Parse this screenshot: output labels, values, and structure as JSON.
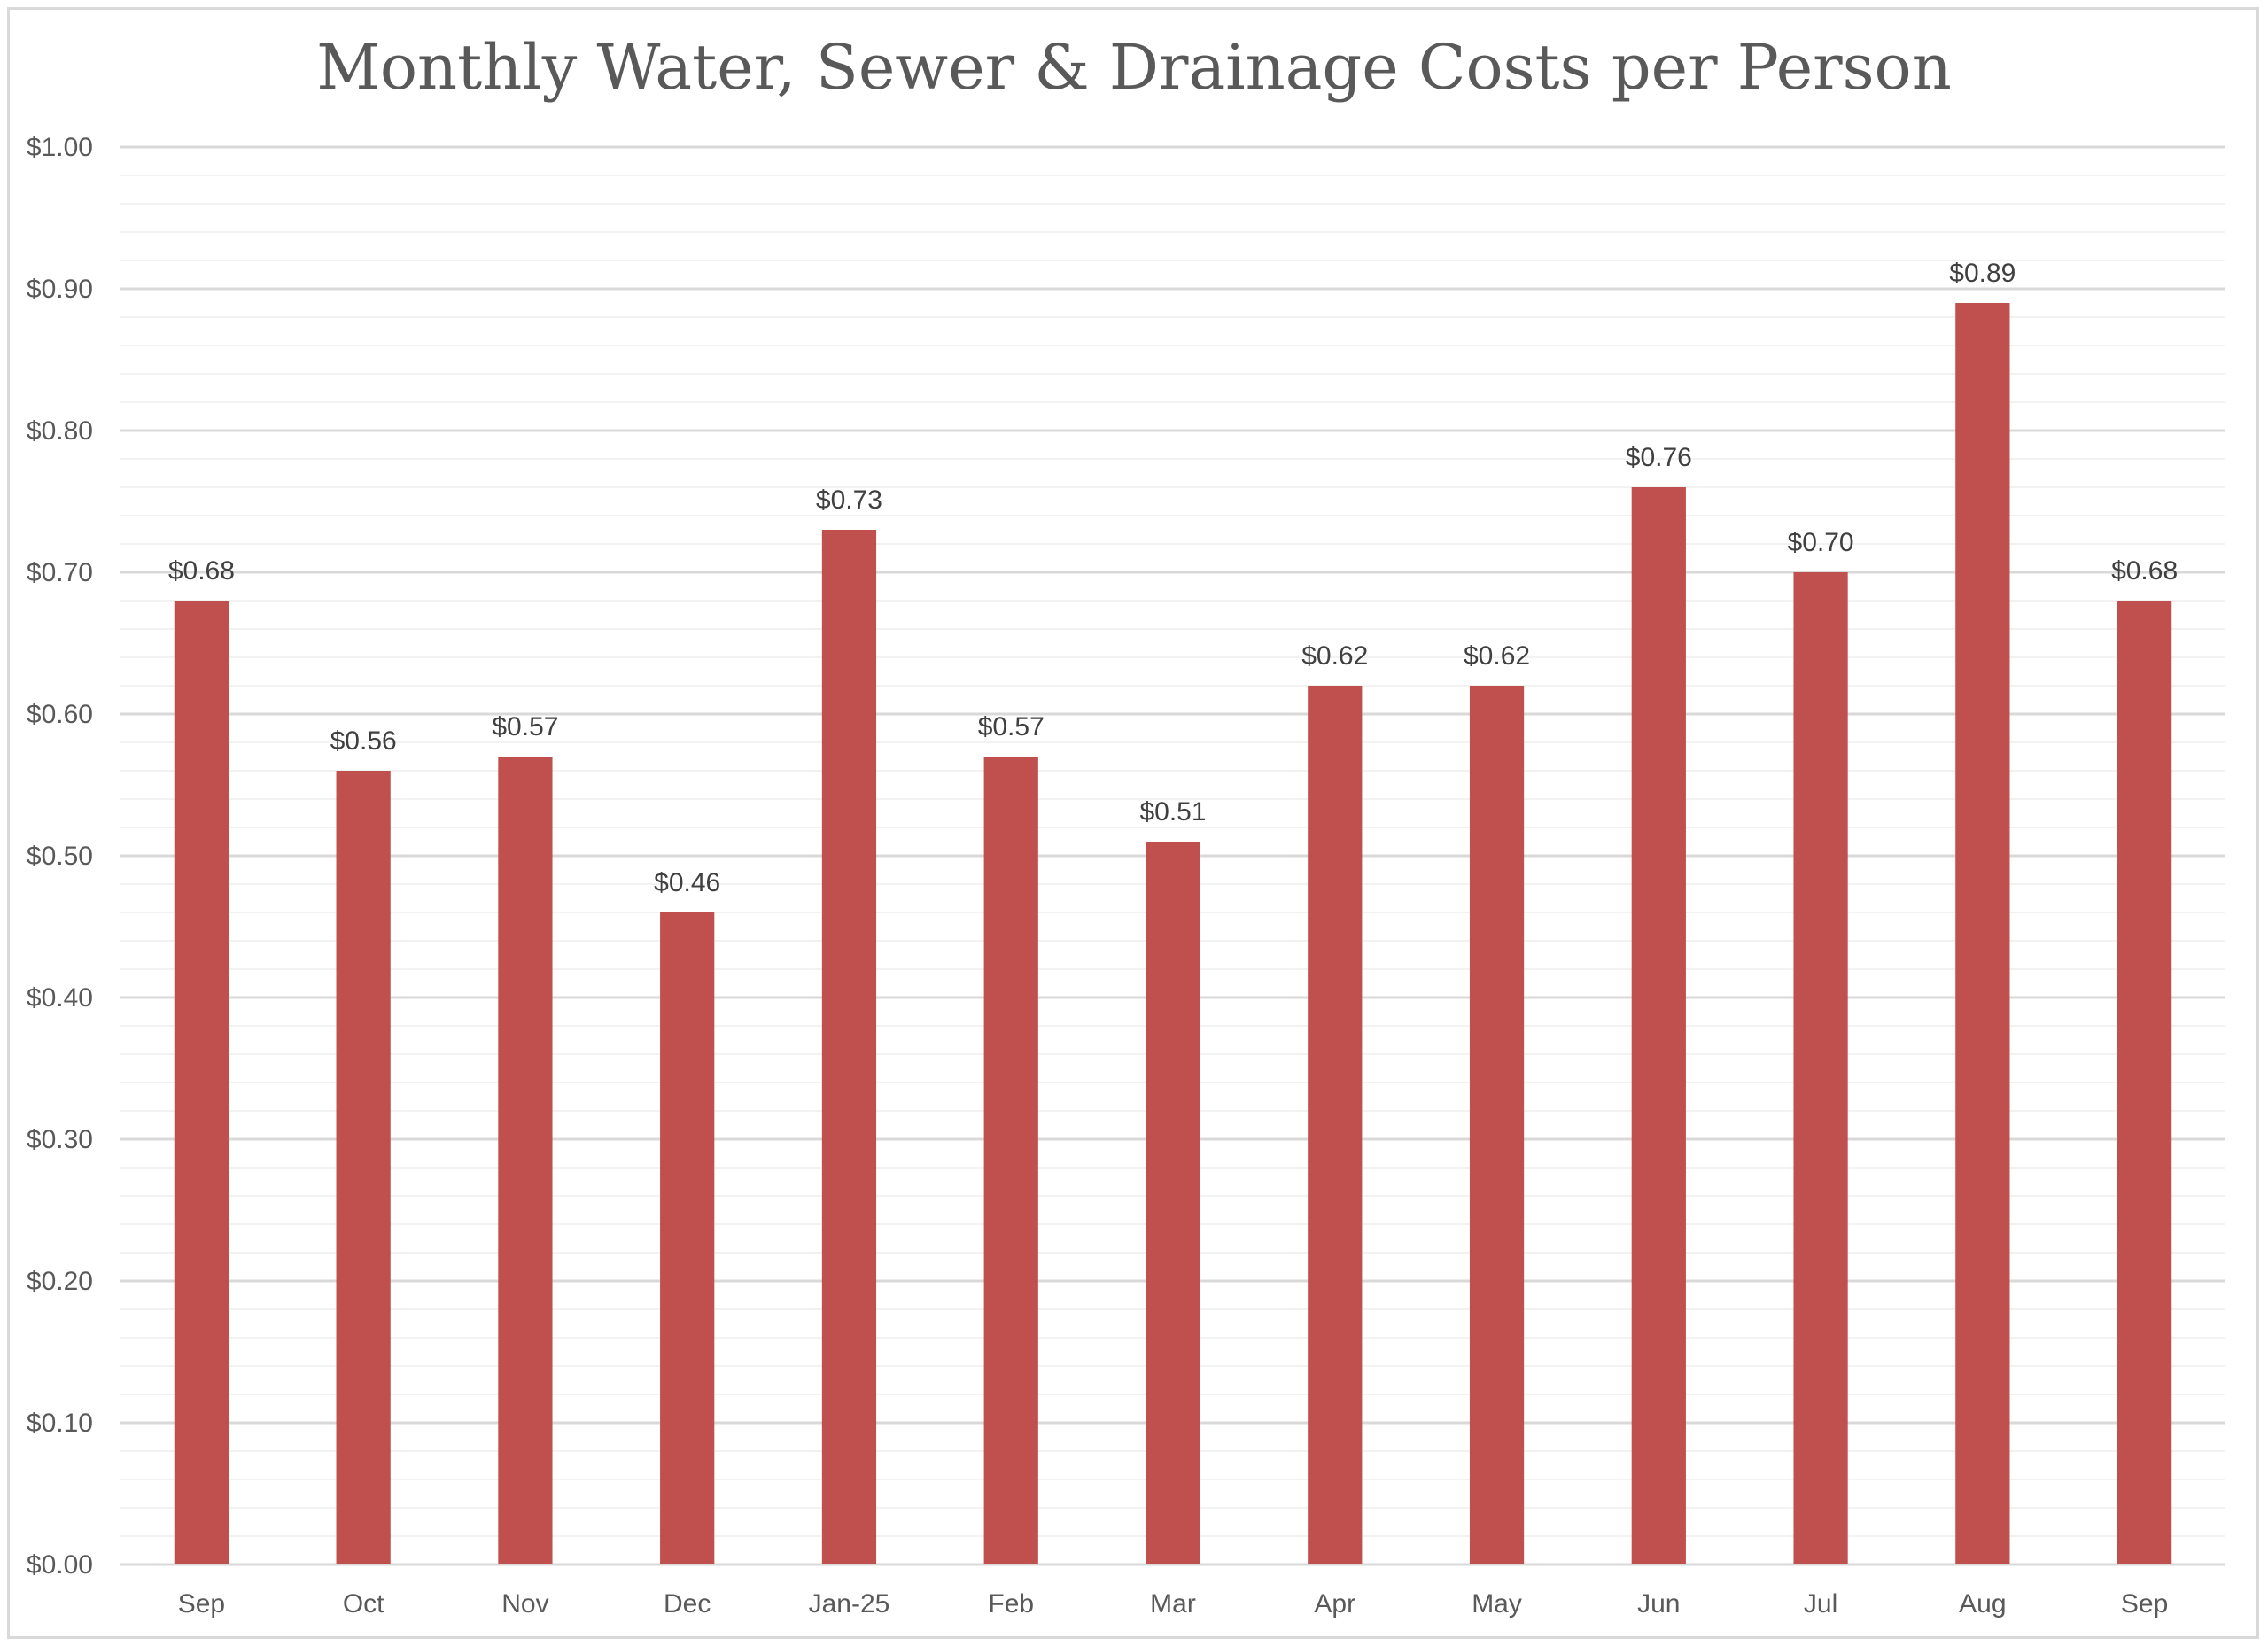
{
  "chart_data": {
    "type": "bar",
    "title": "Monthly Water, Sewer & Drainage Costs per Person",
    "xlabel": "",
    "ylabel": "",
    "categories": [
      "Sep",
      "Oct",
      "Nov",
      "Dec",
      "Jan-25",
      "Feb",
      "Mar",
      "Apr",
      "May",
      "Jun",
      "Jul",
      "Aug",
      "Sep"
    ],
    "values": [
      0.68,
      0.56,
      0.57,
      0.46,
      0.73,
      0.57,
      0.51,
      0.62,
      0.62,
      0.76,
      0.7,
      0.89,
      0.68
    ],
    "data_labels": [
      "$0.68",
      "$0.56",
      "$0.57",
      "$0.46",
      "$0.73",
      "$0.57",
      "$0.51",
      "$0.62",
      "$0.62",
      "$0.76",
      "$0.70",
      "$0.89",
      "$0.68"
    ],
    "ylim": [
      0,
      1.0
    ],
    "y_major_step": 0.1,
    "y_minor_step": 0.02,
    "y_tick_labels": [
      "$0.00",
      "$0.10",
      "$0.20",
      "$0.30",
      "$0.40",
      "$0.50",
      "$0.60",
      "$0.70",
      "$0.80",
      "$0.90",
      "$1.00"
    ],
    "grid": true,
    "legend": "none",
    "colors": {
      "bar": "#c0504d",
      "major_grid": "#d9d9d9",
      "minor_grid": "#f2f2f2",
      "text": "#595959",
      "label_text": "#404040"
    }
  }
}
